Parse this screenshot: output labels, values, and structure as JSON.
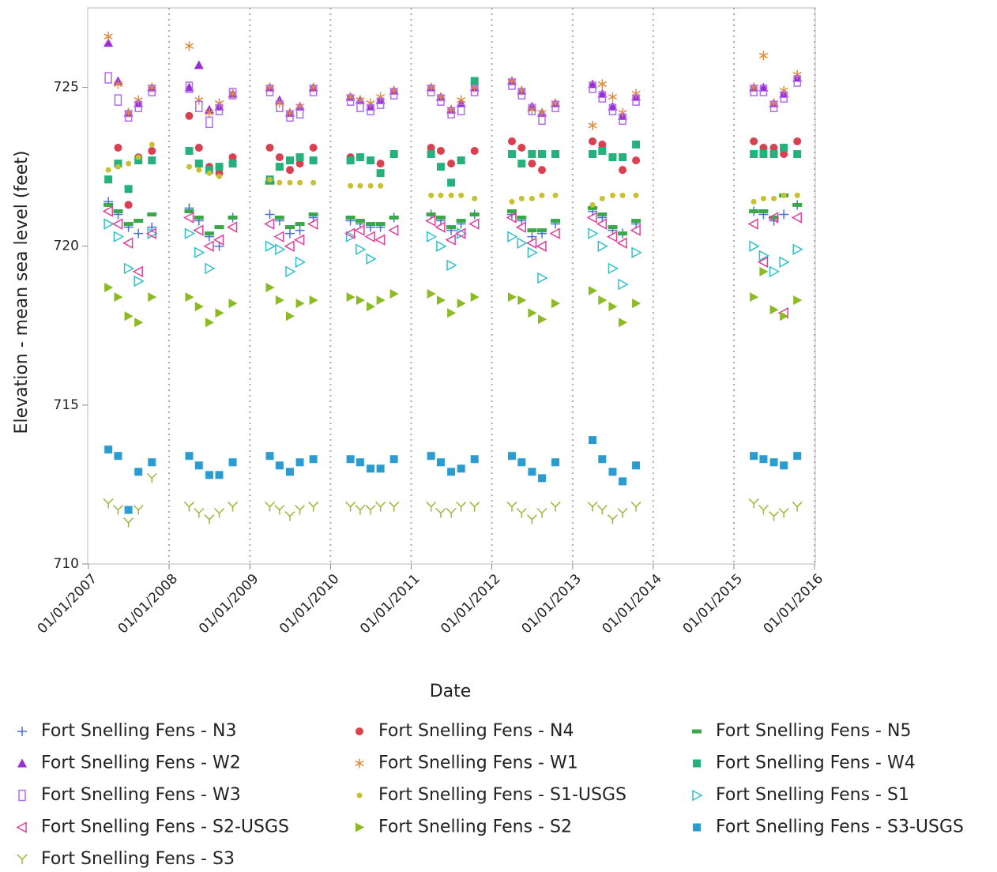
{
  "chart_data": {
    "type": "scatter",
    "y_label": "Elevation - mean sea level (feet)",
    "x_label": "Date",
    "xlim": [
      "2007-01-01",
      "2016-01-01"
    ],
    "xticks": [
      {
        "value": "2007-01-01",
        "label": "01/01/2007"
      },
      {
        "value": "2008-01-01",
        "label": "01/01/2008"
      },
      {
        "value": "2009-01-01",
        "label": "01/01/2009"
      },
      {
        "value": "2010-01-01",
        "label": "01/01/2010"
      },
      {
        "value": "2011-01-01",
        "label": "01/01/2011"
      },
      {
        "value": "2012-01-01",
        "label": "01/01/2012"
      },
      {
        "value": "2013-01-01",
        "label": "01/01/2013"
      },
      {
        "value": "2014-01-01",
        "label": "01/01/2014"
      },
      {
        "value": "2015-01-01",
        "label": "01/01/2015"
      },
      {
        "value": "2016-01-01",
        "label": "01/01/2016"
      }
    ],
    "ylim": [
      710,
      727.5
    ],
    "yticks": [
      710,
      715,
      720,
      725
    ],
    "x_grid": true,
    "x": [
      "2007-04-01",
      "2007-05-15",
      "2007-07-01",
      "2007-08-15",
      "2007-10-15",
      "2008-04-01",
      "2008-05-15",
      "2008-07-01",
      "2008-08-15",
      "2008-10-15",
      "2009-04-01",
      "2009-05-15",
      "2009-07-01",
      "2009-08-15",
      "2009-10-15",
      "2010-04-01",
      "2010-05-15",
      "2010-07-01",
      "2010-08-15",
      "2010-10-15",
      "2011-04-01",
      "2011-05-15",
      "2011-07-01",
      "2011-08-15",
      "2011-10-15",
      "2012-04-01",
      "2012-05-15",
      "2012-07-01",
      "2012-08-15",
      "2012-10-15",
      "2013-04-01",
      "2013-05-15",
      "2013-07-01",
      "2013-08-15",
      "2013-10-15",
      "2015-04-01",
      "2015-05-15",
      "2015-07-01",
      "2015-08-15",
      "2015-10-15"
    ],
    "series": [
      {
        "name": "Fort Snelling Fens - N3",
        "color": "#4a6fd9",
        "marker": "plus",
        "values": [
          721.4,
          721.0,
          720.6,
          720.4,
          720.6,
          721.2,
          720.8,
          720.3,
          720.0,
          720.9,
          721.0,
          720.8,
          720.4,
          720.5,
          720.9,
          720.8,
          720.7,
          720.6,
          720.6,
          720.9,
          721.0,
          720.8,
          720.5,
          720.7,
          721.0,
          721.0,
          720.8,
          720.3,
          720.4,
          720.7,
          721.1,
          720.9,
          720.5,
          720.4,
          720.7,
          721.1,
          721.0,
          720.8,
          721.0,
          721.3
        ]
      },
      {
        "name": "Fort Snelling Fens - N4",
        "color": "#d94050",
        "marker": "circle",
        "values": [
          null,
          723.1,
          721.3,
          722.8,
          723.0,
          724.1,
          723.1,
          722.5,
          722.3,
          722.8,
          723.1,
          722.8,
          722.4,
          722.6,
          723.1,
          722.8,
          722.8,
          722.7,
          722.6,
          722.9,
          723.1,
          723.0,
          722.6,
          722.7,
          723.0,
          723.3,
          723.1,
          722.6,
          722.4,
          722.9,
          723.3,
          723.2,
          722.8,
          722.4,
          722.7,
          723.3,
          723.1,
          723.1,
          722.9,
          723.3
        ]
      },
      {
        "name": "Fort Snelling Fens - N5",
        "color": "#3aa84a",
        "marker": "dash",
        "values": [
          721.3,
          721.1,
          720.7,
          720.8,
          721.0,
          721.1,
          720.9,
          720.4,
          720.6,
          720.9,
          722.0,
          720.9,
          720.6,
          720.7,
          721.0,
          720.9,
          720.8,
          720.7,
          720.7,
          720.9,
          721.0,
          720.9,
          720.6,
          720.8,
          721.0,
          721.1,
          720.9,
          720.5,
          720.5,
          720.8,
          721.2,
          721.0,
          720.6,
          720.4,
          720.8,
          721.1,
          721.1,
          720.9,
          721.6,
          721.3
        ]
      },
      {
        "name": "Fort Snelling Fens - W2",
        "color": "#9a2fd8",
        "marker": "triangle",
        "values": [
          726.4,
          725.2,
          724.2,
          724.5,
          725.0,
          725.0,
          725.7,
          724.3,
          724.4,
          724.8,
          725.0,
          724.6,
          724.2,
          724.4,
          725.0,
          724.7,
          724.6,
          724.4,
          724.6,
          724.9,
          725.0,
          724.7,
          724.3,
          724.5,
          725.0,
          725.2,
          724.9,
          724.4,
          724.2,
          724.5,
          725.1,
          724.8,
          724.4,
          724.1,
          724.7,
          725.0,
          725.0,
          724.5,
          724.8,
          725.3
        ]
      },
      {
        "name": "Fort Snelling Fens - W1",
        "color": "#e08a3c",
        "marker": "star",
        "values": [
          726.6,
          725.1,
          724.2,
          724.6,
          725.0,
          726.3,
          724.6,
          724.2,
          724.5,
          724.8,
          725.0,
          724.5,
          724.2,
          724.4,
          725.0,
          724.7,
          724.6,
          724.5,
          724.7,
          724.9,
          725.0,
          724.7,
          724.3,
          724.6,
          725.0,
          725.2,
          724.9,
          724.3,
          724.2,
          724.5,
          723.8,
          725.1,
          724.7,
          724.2,
          724.8,
          725.0,
          726.0,
          724.5,
          724.9,
          725.4
        ]
      },
      {
        "name": "Fort Snelling Fens - W4",
        "color": "#26b07c",
        "marker": "square",
        "values": [
          722.1,
          722.6,
          721.8,
          722.7,
          722.7,
          723.0,
          722.6,
          722.4,
          722.5,
          722.6,
          722.1,
          722.5,
          722.7,
          722.8,
          722.7,
          722.7,
          722.8,
          722.7,
          722.3,
          722.9,
          722.9,
          722.5,
          722.0,
          722.7,
          725.2,
          722.9,
          722.6,
          722.9,
          722.9,
          722.9,
          722.9,
          723.0,
          722.8,
          722.8,
          723.2,
          722.9,
          722.9,
          722.9,
          723.1,
          722.9
        ]
      },
      {
        "name": "Fort Snelling Fens - W3",
        "color": "#b26cf0",
        "marker": "rect-open",
        "values": [
          725.3,
          724.6,
          724.1,
          724.4,
          724.9,
          725.0,
          724.4,
          723.9,
          724.3,
          724.8,
          724.9,
          724.4,
          724.1,
          724.2,
          724.9,
          724.6,
          724.4,
          724.3,
          724.5,
          724.8,
          724.9,
          724.6,
          724.2,
          724.3,
          724.9,
          725.1,
          724.8,
          724.3,
          724.0,
          724.4,
          725.0,
          724.7,
          724.3,
          724.0,
          724.6,
          724.9,
          724.9,
          724.4,
          724.7,
          725.2
        ]
      },
      {
        "name": "Fort Snelling Fens - S1-USGS",
        "color": "#c8c030",
        "marker": "dot",
        "values": [
          722.4,
          722.5,
          722.6,
          722.8,
          723.2,
          722.5,
          722.4,
          722.3,
          722.2,
          null,
          722.1,
          722.0,
          722.0,
          722.0,
          722.0,
          721.9,
          721.9,
          721.9,
          721.9,
          null,
          721.6,
          721.6,
          721.6,
          721.6,
          721.5,
          721.4,
          721.5,
          721.5,
          721.6,
          721.6,
          721.3,
          721.5,
          721.6,
          721.6,
          721.6,
          721.4,
          721.5,
          721.5,
          721.6,
          721.6
        ]
      },
      {
        "name": "Fort Snelling Fens - S1",
        "color": "#30c0c8",
        "marker": "tri-right-open",
        "values": [
          720.7,
          720.3,
          719.3,
          718.9,
          720.4,
          720.4,
          719.8,
          719.3,
          null,
          null,
          720.0,
          719.9,
          719.2,
          719.5,
          null,
          720.3,
          719.9,
          719.6,
          null,
          null,
          720.3,
          720.0,
          719.4,
          720.4,
          null,
          720.3,
          720.1,
          719.8,
          719.0,
          null,
          720.4,
          720.0,
          719.3,
          718.8,
          719.8,
          720.0,
          719.7,
          719.2,
          719.5,
          719.9
        ]
      },
      {
        "name": "Fort Snelling Fens - S2-USGS",
        "color": "#e0409a",
        "marker": "tri-left-open",
        "values": [
          721.1,
          720.7,
          720.1,
          719.2,
          720.4,
          720.9,
          720.5,
          720.0,
          720.2,
          720.6,
          720.7,
          720.3,
          720.0,
          720.2,
          720.7,
          720.4,
          720.5,
          720.3,
          720.2,
          720.5,
          720.8,
          720.6,
          720.2,
          720.4,
          720.7,
          720.9,
          720.6,
          720.1,
          720.0,
          720.4,
          720.9,
          720.7,
          720.3,
          720.1,
          720.5,
          720.7,
          719.5,
          720.9,
          717.9,
          720.9
        ]
      },
      {
        "name": "Fort Snelling Fens - S2",
        "color": "#8bba22",
        "marker": "tri-right",
        "values": [
          718.7,
          718.4,
          717.8,
          717.6,
          718.4,
          718.4,
          718.1,
          717.6,
          717.9,
          718.2,
          718.7,
          718.3,
          717.8,
          718.2,
          718.3,
          718.4,
          718.3,
          718.1,
          718.3,
          718.5,
          718.5,
          718.3,
          717.9,
          718.2,
          718.4,
          718.4,
          718.3,
          717.9,
          717.7,
          718.2,
          718.6,
          718.3,
          718.1,
          717.6,
          718.2,
          718.4,
          719.2,
          718.0,
          717.8,
          718.3
        ]
      },
      {
        "name": "Fort Snelling Fens - S3-USGS",
        "color": "#2a9cd0",
        "marker": "square",
        "values": [
          713.6,
          713.4,
          711.7,
          712.9,
          713.2,
          713.4,
          713.1,
          712.8,
          712.8,
          713.2,
          713.4,
          713.1,
          712.9,
          713.2,
          713.3,
          713.3,
          713.2,
          713.0,
          713.0,
          713.3,
          713.4,
          713.2,
          712.9,
          713.0,
          713.3,
          713.4,
          713.2,
          712.9,
          712.7,
          713.2,
          713.9,
          713.3,
          712.9,
          712.6,
          713.1,
          713.4,
          713.3,
          713.2,
          713.1,
          713.4
        ]
      },
      {
        "name": "Fort Snelling Fens - S3",
        "color": "#9ab83a",
        "marker": "y",
        "values": [
          711.9,
          711.7,
          711.3,
          711.7,
          712.7,
          711.8,
          711.6,
          711.4,
          711.6,
          711.8,
          711.8,
          711.7,
          711.5,
          711.7,
          711.8,
          711.8,
          711.7,
          711.7,
          711.8,
          711.8,
          711.8,
          711.6,
          711.6,
          711.8,
          711.8,
          711.8,
          711.6,
          711.4,
          711.6,
          711.8,
          711.8,
          711.7,
          711.4,
          711.6,
          711.8,
          711.9,
          711.7,
          711.5,
          711.6,
          711.8
        ]
      }
    ]
  }
}
